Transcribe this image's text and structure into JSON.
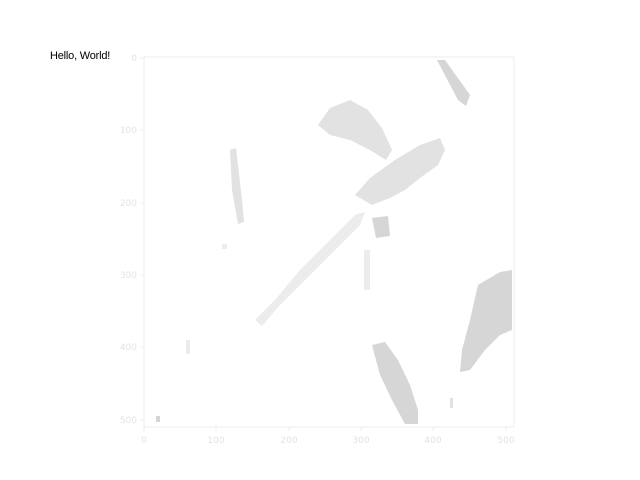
{
  "greeting": "Hello, World!",
  "image_axes": {
    "x_ticks": [
      "0",
      "100",
      "200",
      "300",
      "400",
      "500"
    ],
    "y_ticks": [
      "0",
      "100",
      "200",
      "300",
      "400",
      "500"
    ],
    "colors": {
      "axis": "#ececec",
      "tick_label": "#e3e3e3",
      "image_gray": "#d6d6d6",
      "background": "#ffffff"
    }
  }
}
